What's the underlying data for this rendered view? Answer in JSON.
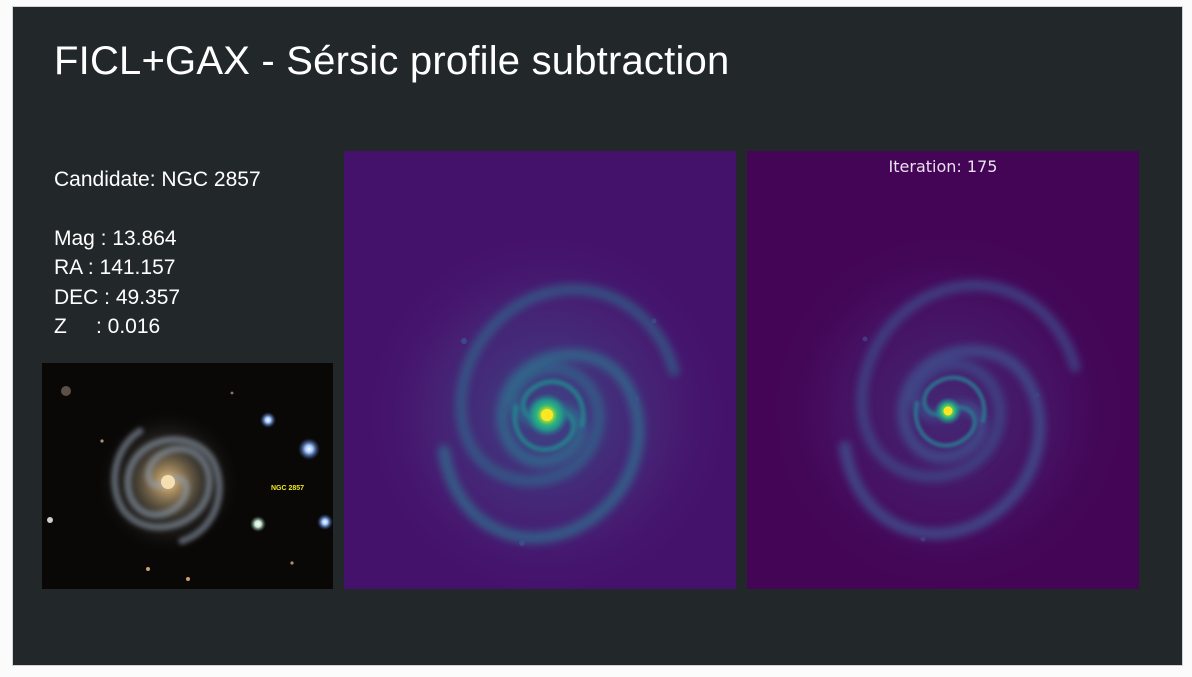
{
  "slide": {
    "title": "FICL+GAX - Sérsic profile subtraction"
  },
  "candidate": {
    "label": "Candidate: NGC 2857",
    "rows": [
      {
        "text": "Mag : 13.864"
      },
      {
        "text": "RA : 141.157"
      },
      {
        "text": "DEC : 49.357"
      },
      {
        "text": "Z     : 0.016"
      }
    ]
  },
  "photo": {
    "galaxy_label": "NGC 2857",
    "label_color": "#f2ea1c"
  },
  "panels": {
    "original": {
      "background": "#45126b"
    },
    "residual": {
      "iteration_label": "Iteration: 175",
      "background": "#440556"
    }
  },
  "colors": {
    "slide_background": "#222729",
    "text": "#ffffff"
  }
}
